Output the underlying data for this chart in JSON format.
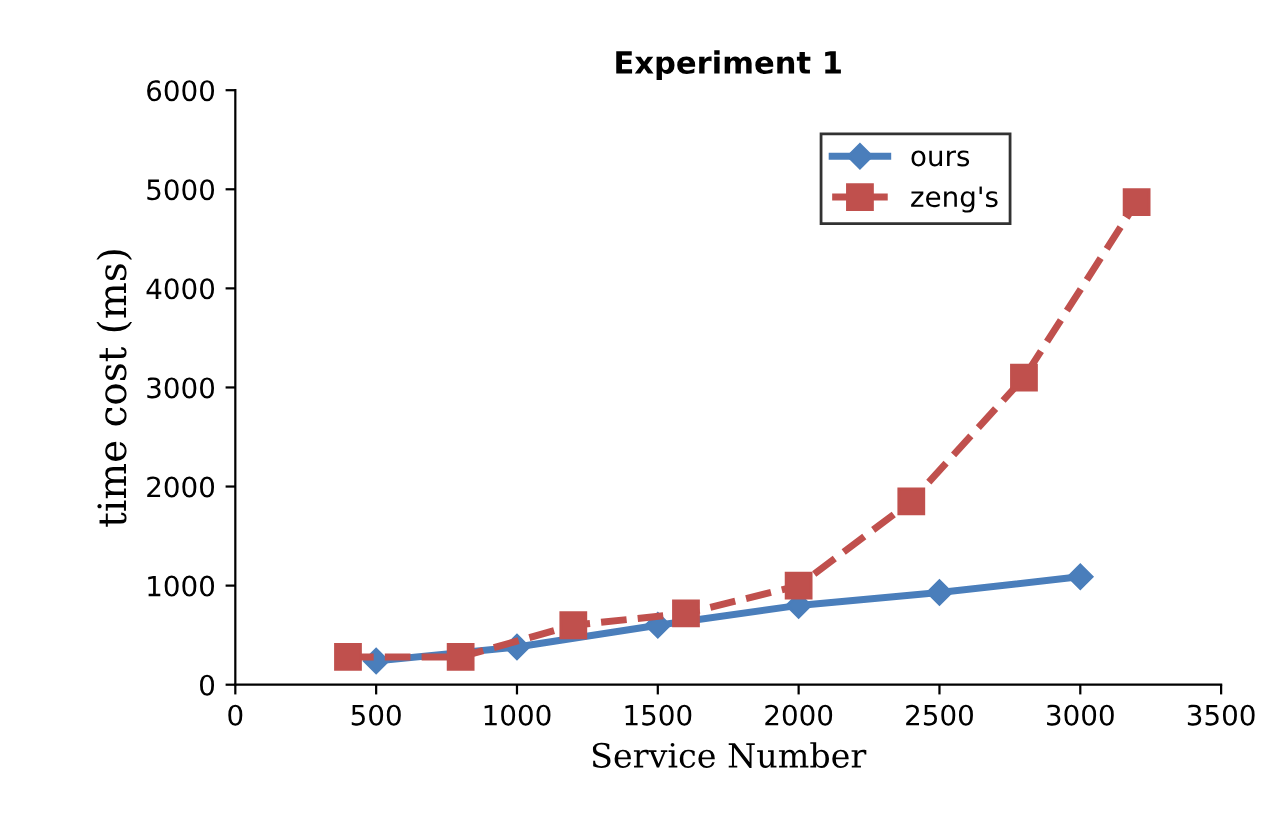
{
  "chart_data": {
    "type": "line",
    "title": "Experiment 1",
    "xlabel": "Service Number",
    "ylabel": "time cost (ms)",
    "xlim": [
      0,
      3500
    ],
    "xticks": [
      0,
      500,
      1000,
      1500,
      2000,
      2500,
      3000,
      3500
    ],
    "ylim": [
      0,
      6000
    ],
    "yticks": [
      0,
      1000,
      2000,
      3000,
      4000,
      5000,
      6000
    ],
    "grid": false,
    "legend": "top right",
    "series": [
      {
        "name": "ours",
        "color": "#4a7ebb",
        "marker": "diamond",
        "line_style": "solid",
        "x": [
          500,
          1000,
          1500,
          2000,
          2500,
          3000
        ],
        "values": [
          240,
          380,
          600,
          800,
          930,
          1090
        ]
      },
      {
        "name": "zeng's",
        "color": "#c0504d",
        "marker": "square",
        "line_style": "dashed",
        "x": [
          400,
          800,
          1200,
          1600,
          2000,
          2400,
          2800,
          3200
        ],
        "values": [
          280,
          280,
          600,
          720,
          1000,
          1850,
          3100,
          4870
        ]
      }
    ]
  }
}
